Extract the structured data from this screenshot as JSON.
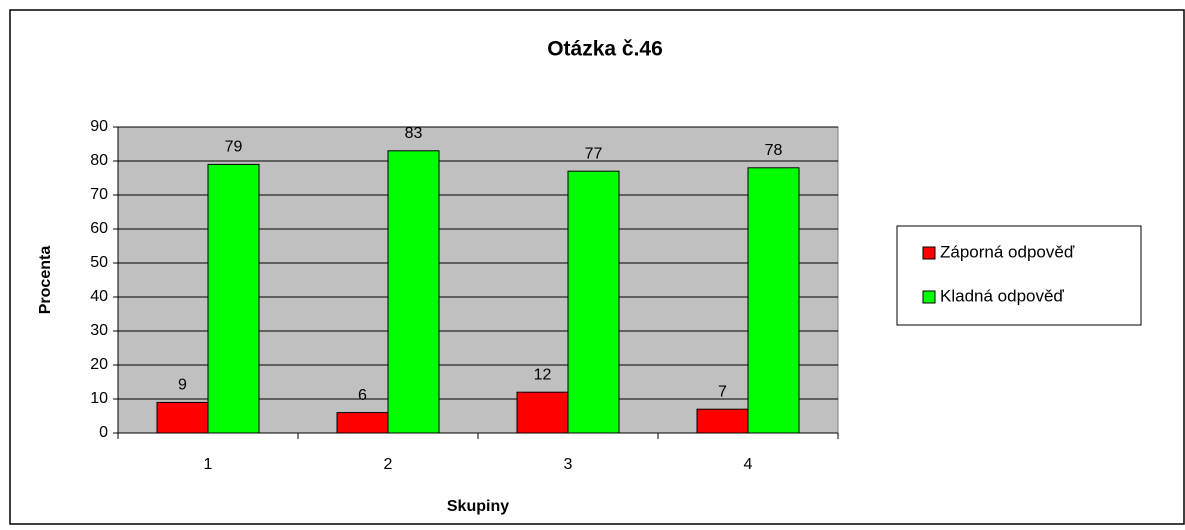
{
  "chart_data": {
    "type": "bar",
    "title": "Otázka č.46",
    "xlabel": "Skupiny",
    "ylabel": "Procenta",
    "categories": [
      "1",
      "2",
      "3",
      "4"
    ],
    "series": [
      {
        "name": "Záporná odpověď",
        "color": "#ff0000",
        "values": [
          9,
          6,
          12,
          7
        ]
      },
      {
        "name": "Kladná odpověď",
        "color": "#00ff00",
        "values": [
          79,
          83,
          77,
          78
        ]
      }
    ],
    "ylim": [
      0,
      90
    ],
    "yticks": [
      0,
      10,
      20,
      30,
      40,
      50,
      60,
      70,
      80,
      90
    ],
    "grid": true,
    "plot_background": "#c0c0c0",
    "legend": "right"
  }
}
